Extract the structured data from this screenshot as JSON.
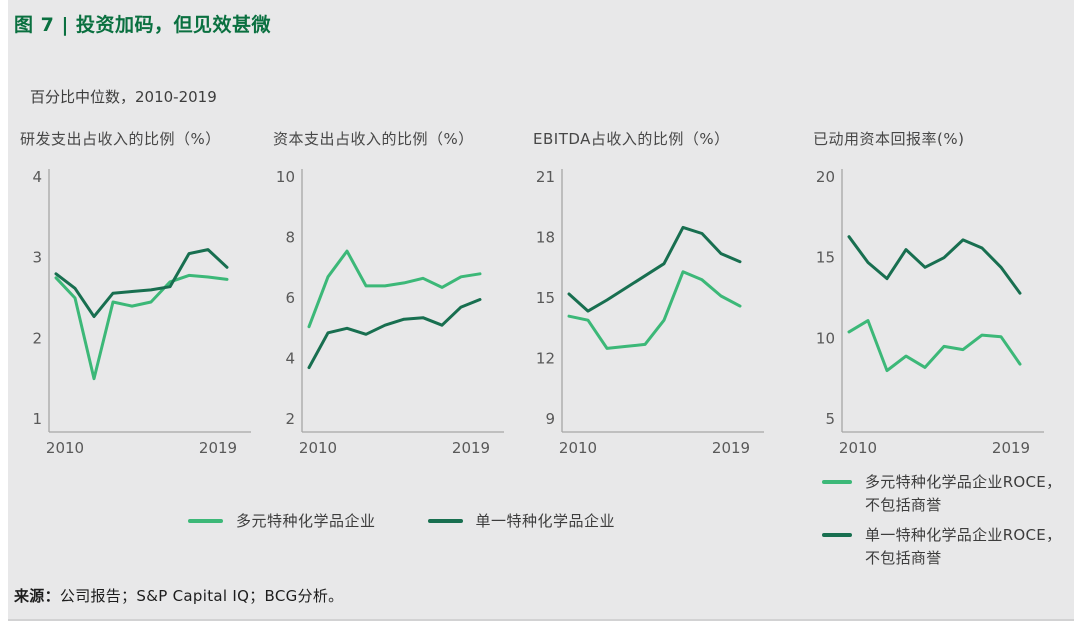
{
  "page": {
    "title": "图 7 | 投资加码，但见效甚微",
    "subtitle": "百分比中位数，2010-2019",
    "source_label": "来源：",
    "source_text": "公司报告；S&P Capital IQ；BCG分析。"
  },
  "colors": {
    "title_green": "#0a7040",
    "light": "#3cb878",
    "dark": "#186f50",
    "background": "#e8e8e9",
    "axis": "#a6a6a6",
    "tick_text": "#595959"
  },
  "legend_main": {
    "items": [
      {
        "swatch": "light",
        "label": "多元特种化学品企业"
      },
      {
        "swatch": "dark",
        "label": "单一特种化学品企业"
      }
    ]
  },
  "legend_roce": {
    "items": [
      {
        "swatch": "light",
        "line1": "多元特种化学品企业ROCE，",
        "line2": "不包括商誉"
      },
      {
        "swatch": "dark",
        "line1": "单一特种化学品企业ROCE，",
        "line2": "不包括商誉"
      }
    ]
  },
  "chart_data": [
    {
      "type": "line",
      "title": "研发支出占收入的比例（%）",
      "x": [
        2010,
        2011,
        2012,
        2013,
        2014,
        2015,
        2016,
        2017,
        2018,
        2019
      ],
      "x_tick_labels": [
        "2010",
        "2019"
      ],
      "ylim": [
        1,
        4
      ],
      "yticks": [
        4,
        3,
        2,
        1
      ],
      "grid": false,
      "series": [
        {
          "name": "多元特种化学品企业",
          "color": "light",
          "values": [
            2.75,
            2.5,
            1.5,
            2.45,
            2.4,
            2.45,
            2.7,
            2.78,
            2.76,
            2.73
          ]
        },
        {
          "name": "单一特种化学品企业",
          "color": "dark",
          "values": [
            2.8,
            2.62,
            2.27,
            2.56,
            2.58,
            2.6,
            2.64,
            3.05,
            3.1,
            2.88
          ]
        }
      ]
    },
    {
      "type": "line",
      "title": "资本支出占收入的比例（%）",
      "x": [
        2010,
        2011,
        2012,
        2013,
        2014,
        2015,
        2016,
        2017,
        2018,
        2019
      ],
      "x_tick_labels": [
        "2010",
        "2019"
      ],
      "ylim": [
        2,
        10
      ],
      "yticks": [
        10,
        8,
        6,
        4,
        2
      ],
      "grid": false,
      "series": [
        {
          "name": "多元特种化学品企业",
          "color": "light",
          "values": [
            5.05,
            6.7,
            7.55,
            6.4,
            6.4,
            6.5,
            6.65,
            6.35,
            6.7,
            6.8
          ]
        },
        {
          "name": "单一特种化学品企业",
          "color": "dark",
          "values": [
            3.7,
            4.85,
            5.0,
            4.8,
            5.1,
            5.3,
            5.35,
            5.1,
            5.7,
            5.95
          ]
        }
      ]
    },
    {
      "type": "line",
      "title": "EBITDA占收入的比例（%）",
      "x": [
        2010,
        2011,
        2012,
        2013,
        2014,
        2015,
        2016,
        2017,
        2018,
        2019
      ],
      "x_tick_labels": [
        "2010",
        "2019"
      ],
      "ylim": [
        9,
        21
      ],
      "yticks": [
        21,
        18,
        15,
        12,
        9
      ],
      "grid": false,
      "series": [
        {
          "name": "多元特种化学品企业",
          "color": "light",
          "values": [
            14.1,
            13.9,
            12.5,
            12.6,
            12.7,
            13.9,
            16.3,
            15.9,
            15.1,
            14.6
          ]
        },
        {
          "name": "单一特种化学品企业",
          "color": "dark",
          "values": [
            15.2,
            14.35,
            14.9,
            15.5,
            16.1,
            16.7,
            18.5,
            18.2,
            17.2,
            16.8
          ]
        }
      ]
    },
    {
      "type": "line",
      "title": "已动用资本回报率(%)",
      "x": [
        2010,
        2011,
        2012,
        2013,
        2014,
        2015,
        2016,
        2017,
        2018,
        2019
      ],
      "x_tick_labels": [
        "2010",
        "2019"
      ],
      "ylim": [
        5,
        20
      ],
      "yticks": [
        20,
        15,
        10,
        5
      ],
      "grid": false,
      "series": [
        {
          "name": "多元特种化学品企业ROCE，不包括商誉",
          "color": "light",
          "values": [
            10.4,
            11.1,
            8.0,
            8.9,
            8.2,
            9.5,
            9.3,
            10.2,
            10.1,
            8.4
          ]
        },
        {
          "name": "单一特种化学品企业ROCE，不包括商誉",
          "color": "dark",
          "values": [
            16.3,
            14.7,
            13.7,
            15.5,
            14.4,
            15.0,
            16.1,
            15.6,
            14.4,
            12.8
          ]
        }
      ]
    }
  ]
}
